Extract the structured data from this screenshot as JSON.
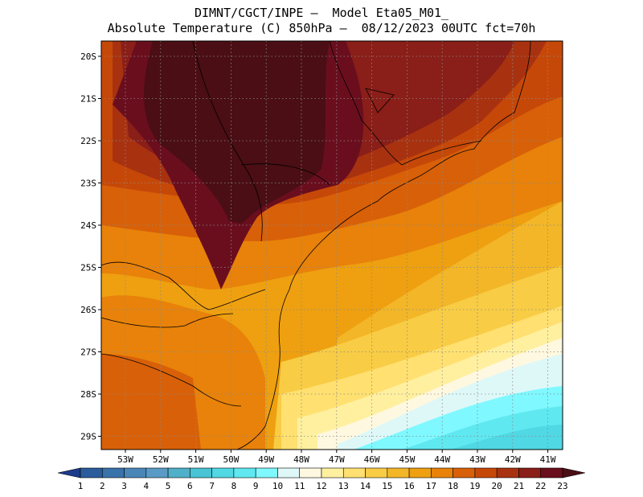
{
  "header": {
    "line1": "DIMNT/CGCT/INPE –  Model Eta05_M01_",
    "line2": "Absolute Temperature (C) 850hPa –  08/12/2023 00UTC fct=70h"
  },
  "map": {
    "lat_labels": [
      "20S",
      "21S",
      "22S",
      "23S",
      "24S",
      "25S",
      "26S",
      "27S",
      "28S",
      "29S"
    ],
    "lon_labels": [
      "53W",
      "52W",
      "51W",
      "50W",
      "49W",
      "48W",
      "47W",
      "46W",
      "45W",
      "44W",
      "43W",
      "42W",
      "41W"
    ]
  },
  "colorbar": {
    "labels": [
      "1",
      "2",
      "3",
      "4",
      "5",
      "6",
      "7",
      "8",
      "9",
      "10",
      "11",
      "12",
      "13",
      "14",
      "15",
      "16",
      "17",
      "18",
      "19",
      "20",
      "21",
      "22",
      "23"
    ],
    "colors": [
      "#1e3c8c",
      "#2b5c9c",
      "#3a72aa",
      "#4a86b8",
      "#5a9ac6",
      "#4fb0c8",
      "#48c4d4",
      "#50d8e4",
      "#5fe8f0",
      "#7ff8ff",
      "#def8f8",
      "#fff8e0",
      "#fff0a0",
      "#ffe070",
      "#f8cc44",
      "#f2b628",
      "#eea010",
      "#e8820a",
      "#d86008",
      "#c64808",
      "#a83210",
      "#8a1e18",
      "#6a0e1e",
      "#4a0e14"
    ]
  }
}
